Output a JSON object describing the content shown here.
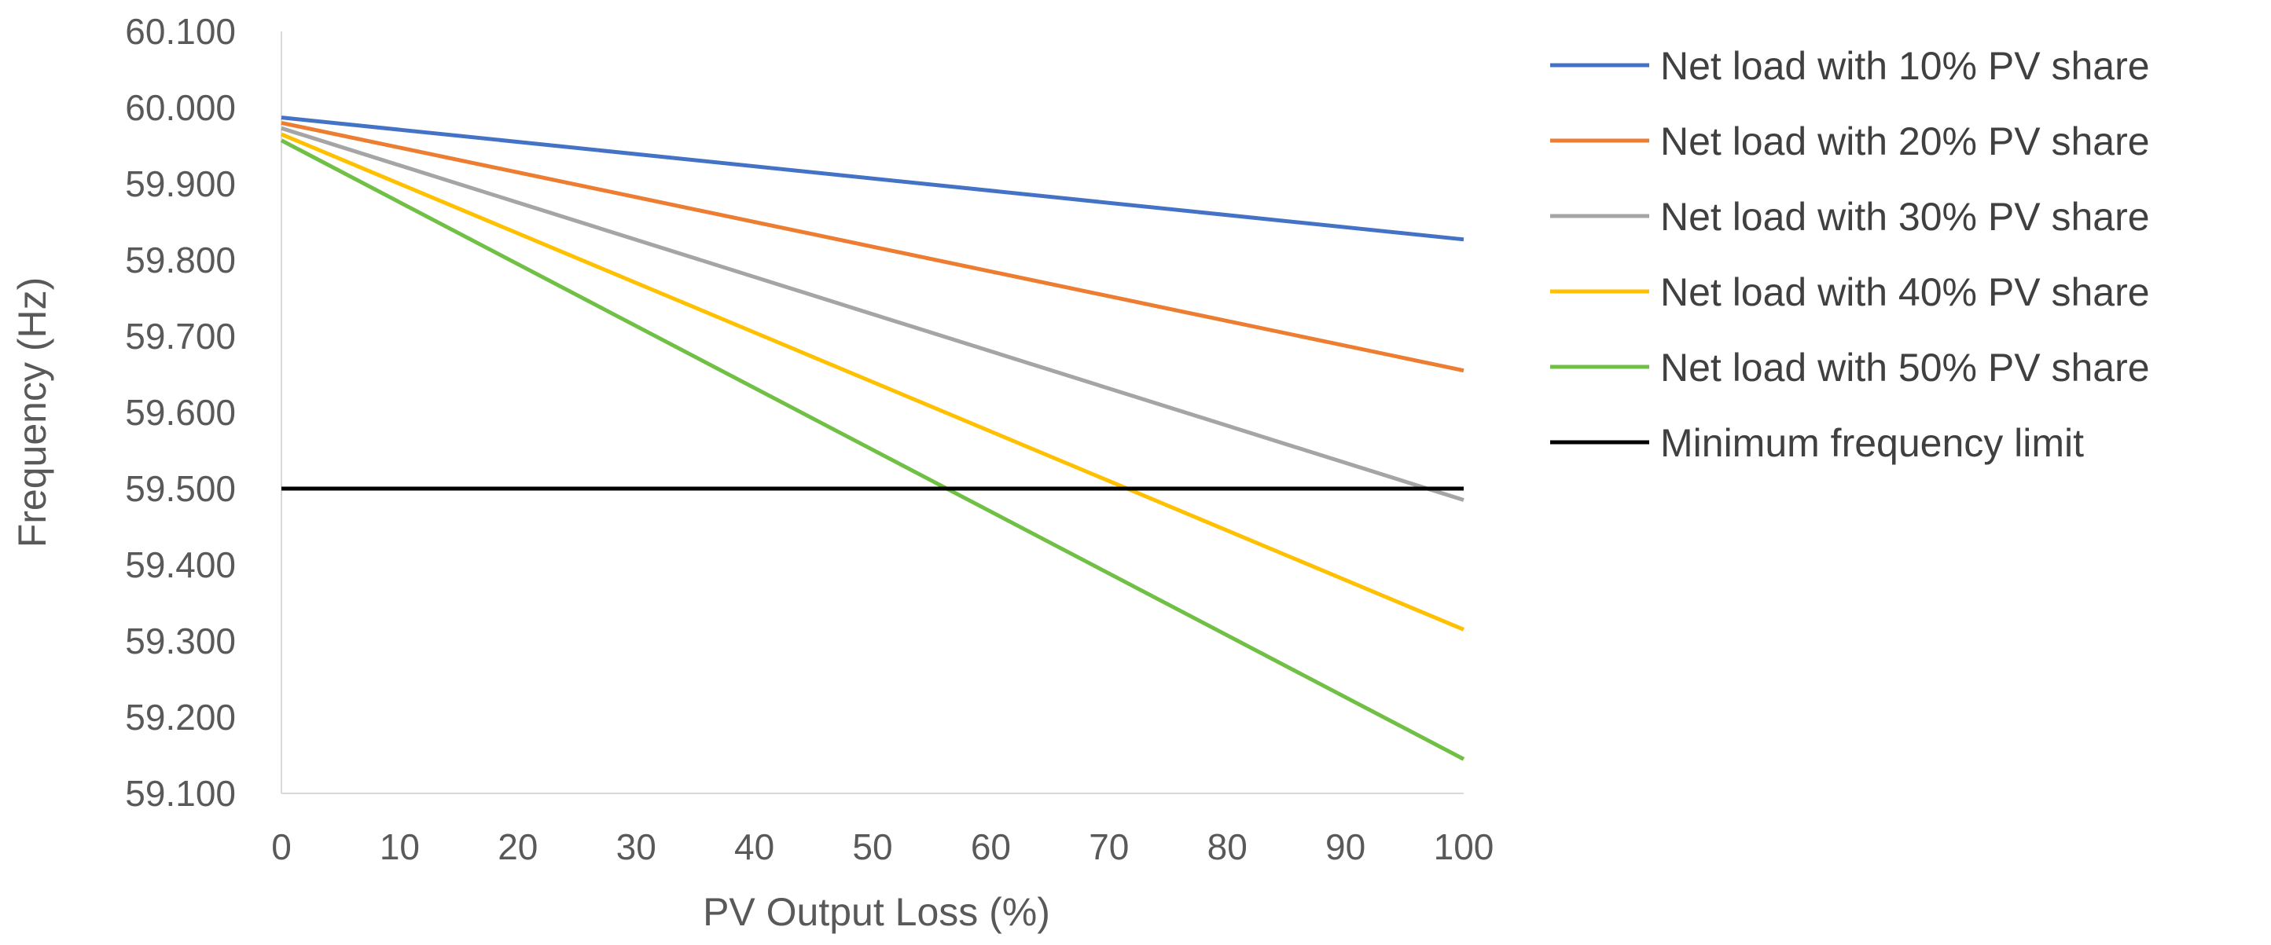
{
  "chart_data": {
    "type": "line",
    "title": "",
    "xlabel": "PV Output Loss (%)",
    "ylabel": "Frequency (Hz)",
    "x": [
      0,
      100
    ],
    "xticks": [
      0,
      10,
      20,
      30,
      40,
      50,
      60,
      70,
      80,
      90,
      100
    ],
    "xlim": [
      0,
      100
    ],
    "ylim": [
      59.1,
      60.1
    ],
    "yticks": [
      "59.100",
      "59.200",
      "59.300",
      "59.400",
      "59.500",
      "59.600",
      "59.700",
      "59.800",
      "59.900",
      "60.000",
      "60.100"
    ],
    "grid": false,
    "legend_position": "right",
    "series": [
      {
        "name": "Net load with 10% PV share",
        "color": "#4472C4",
        "values": [
          59.987,
          59.827
        ]
      },
      {
        "name": "Net load with 20% PV share",
        "color": "#ED7D31",
        "values": [
          59.98,
          59.655
        ]
      },
      {
        "name": "Net load with 30% PV share",
        "color": "#A5A5A5",
        "values": [
          59.973,
          59.485
        ]
      },
      {
        "name": "Net load with 40% PV share",
        "color": "#FFC000",
        "values": [
          59.965,
          59.315
        ]
      },
      {
        "name": "Net load with 50% PV share",
        "color": "#70C045",
        "values": [
          59.957,
          59.145
        ]
      },
      {
        "name": "Minimum frequency limit",
        "color": "#000000",
        "values": [
          59.5,
          59.5
        ]
      }
    ]
  }
}
